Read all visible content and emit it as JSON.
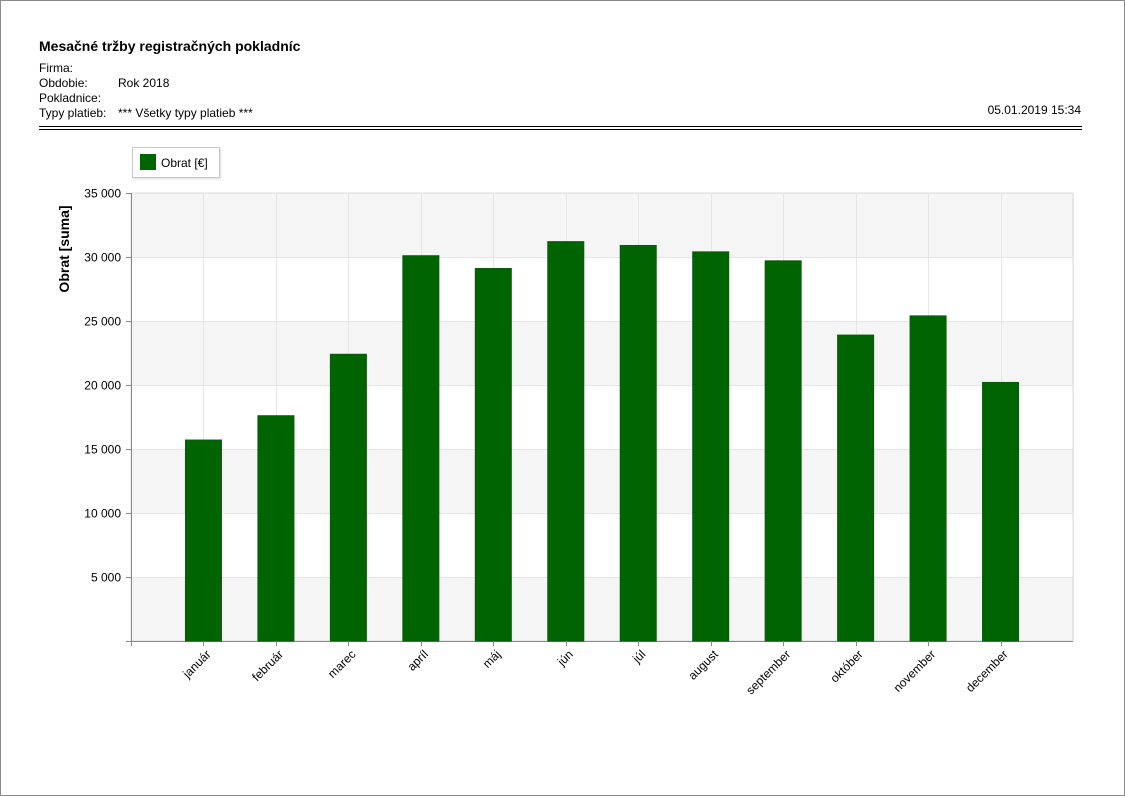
{
  "report": {
    "title": "Mesačné tržby registračných pokladníc",
    "fields": [
      {
        "label": "Firma:",
        "value": ""
      },
      {
        "label": "Obdobie:",
        "value": "Rok 2018"
      },
      {
        "label": "Pokladnice:",
        "value": ""
      },
      {
        "label": "Typy platieb:",
        "value": "*** Všetky typy platieb ***"
      }
    ],
    "timestamp": "05.01.2019 15:34"
  },
  "colors": {
    "bar": "#006400",
    "plot_bg_band": "#f5f5f5",
    "grid": "#e6e6e6"
  },
  "chart_data": {
    "type": "bar",
    "categories": [
      "január",
      "február",
      "marec",
      "apríl",
      "máj",
      "jún",
      "júl",
      "august",
      "september",
      "október",
      "november",
      "december"
    ],
    "series": [
      {
        "name": "Obrat [€]",
        "values": [
          15700,
          17600,
          22400,
          30100,
          29100,
          31200,
          30900,
          30400,
          29700,
          23900,
          25400,
          20200
        ]
      }
    ],
    "ylabel": "Obrat [suma]",
    "xlabel": "",
    "ylim": [
      0,
      35000
    ],
    "yticks": [
      5000,
      10000,
      15000,
      20000,
      25000,
      30000,
      35000
    ],
    "ytick_labels": [
      "5 000",
      "10 000",
      "15 000",
      "20 000",
      "25 000",
      "30 000",
      "35 000"
    ],
    "grid": true,
    "legend_position": "top-left"
  }
}
